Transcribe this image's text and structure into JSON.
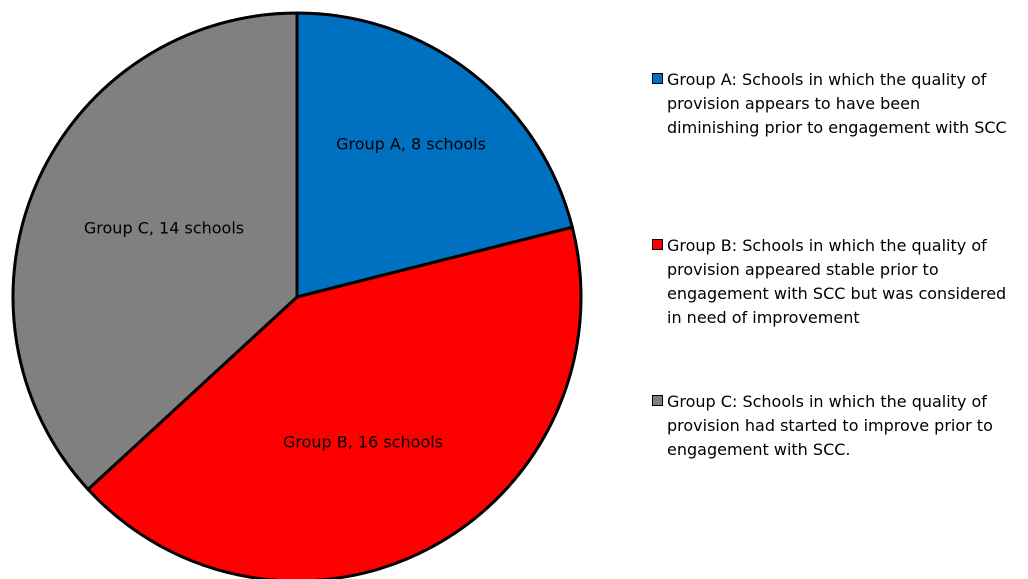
{
  "chart_data": {
    "type": "pie",
    "categories": [
      "Group A",
      "Group B",
      "Group C"
    ],
    "values": [
      8,
      16,
      14
    ],
    "unit": "schools",
    "colors": [
      "#0070C0",
      "#FF0000",
      "#808080"
    ],
    "slice_labels": [
      "Group A, 8 schools",
      "Group B, 16 schools",
      "Group C, 14 schools"
    ],
    "legend_placement": "right",
    "legend": [
      {
        "label": "Group A: Schools in which the quality of provision appears to have been diminishing prior to engagement with SCC",
        "color": "#0070C0"
      },
      {
        "label": "Group B: Schools in which the quality of provision appeared stable prior to engagement with SCC but was considered in need of improvement",
        "color": "#FF0000"
      },
      {
        "label": "Group C: Schools in which the quality of provision had started to improve prior to engagement with SCC.",
        "color": "#808080"
      }
    ]
  }
}
